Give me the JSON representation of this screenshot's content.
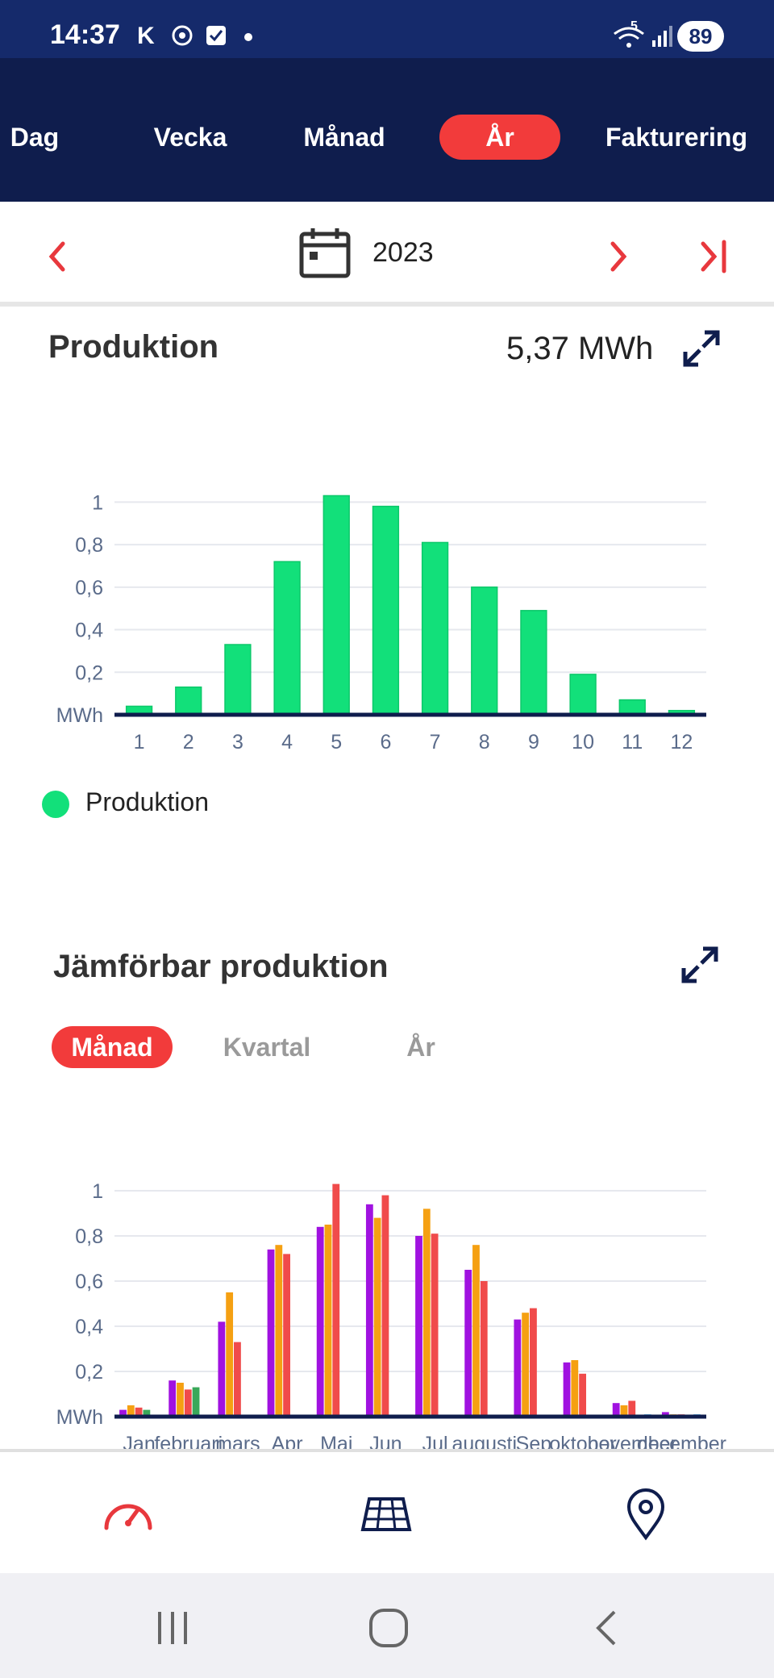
{
  "status": {
    "time": "14:37",
    "carrier_glyph": "K",
    "battery": "89",
    "signal_label": "5"
  },
  "tabs": [
    {
      "label": "Dag"
    },
    {
      "label": "Vecka"
    },
    {
      "label": "Månad"
    },
    {
      "label": "År",
      "active": true
    },
    {
      "label": "Fakturering"
    }
  ],
  "date_nav": {
    "label": "2023"
  },
  "production": {
    "title": "Produktion",
    "total": "5,37 MWh",
    "legend_label": "Produktion",
    "color": "#12e07a"
  },
  "comparable": {
    "title": "Jämförbar produktion",
    "segments": [
      {
        "label": "Månad",
        "active": true
      },
      {
        "label": "Kvartal"
      },
      {
        "label": "År"
      }
    ]
  },
  "chart_data": [
    {
      "type": "bar",
      "categories": [
        "1",
        "2",
        "3",
        "4",
        "5",
        "6",
        "7",
        "8",
        "9",
        "10",
        "11",
        "12"
      ],
      "values": [
        0.04,
        0.13,
        0.33,
        0.72,
        1.03,
        0.98,
        0.81,
        0.6,
        0.49,
        0.19,
        0.07,
        0.02
      ],
      "ylabel": "MWh",
      "yticks": [
        "MWh",
        "0,2",
        "0,4",
        "0,6",
        "0,8",
        "1"
      ],
      "ylim": [
        0,
        1.1
      ],
      "series": [
        {
          "name": "Produktion",
          "color": "#12e07a"
        }
      ],
      "grid": true,
      "legend": "bottom-left"
    },
    {
      "type": "bar",
      "categories": [
        "Jan",
        "februari",
        "mars",
        "Apr",
        "Maj",
        "Jun",
        "Jul",
        "augusti",
        "Sep",
        "oktober",
        "november",
        "december"
      ],
      "ylabel": "MWh",
      "yticks": [
        "MWh",
        "0,2",
        "0,4",
        "0,6",
        "0,8",
        "1"
      ],
      "ylim": [
        0,
        1.1
      ],
      "grid": true,
      "series": [
        {
          "color": "#a012e0",
          "values": [
            0.03,
            0.16,
            0.42,
            0.74,
            0.84,
            0.94,
            0.8,
            0.65,
            0.43,
            0.24,
            0.06,
            0.02
          ]
        },
        {
          "color": "#f5a012",
          "values": [
            0.05,
            0.15,
            0.55,
            0.76,
            0.85,
            0.88,
            0.92,
            0.76,
            0.46,
            0.25,
            0.05,
            0.01
          ]
        },
        {
          "color": "#f04b4b",
          "values": [
            0.04,
            0.12,
            0.33,
            0.72,
            1.03,
            0.98,
            0.81,
            0.6,
            0.48,
            0.19,
            0.07,
            0.01
          ]
        },
        {
          "color": "#3aa85a",
          "values": [
            0.03,
            0.13,
            0.0,
            0.0,
            0.0,
            0.0,
            0.0,
            0.0,
            0.0,
            0.0,
            0.0,
            0.0
          ]
        },
        {
          "color": "#2aa8f0",
          "values": [
            0.0,
            0.0,
            0.0,
            0.0,
            0.0,
            0.0,
            0.0,
            0.0,
            0.0,
            0.0,
            0.01,
            0.01
          ]
        }
      ]
    }
  ]
}
